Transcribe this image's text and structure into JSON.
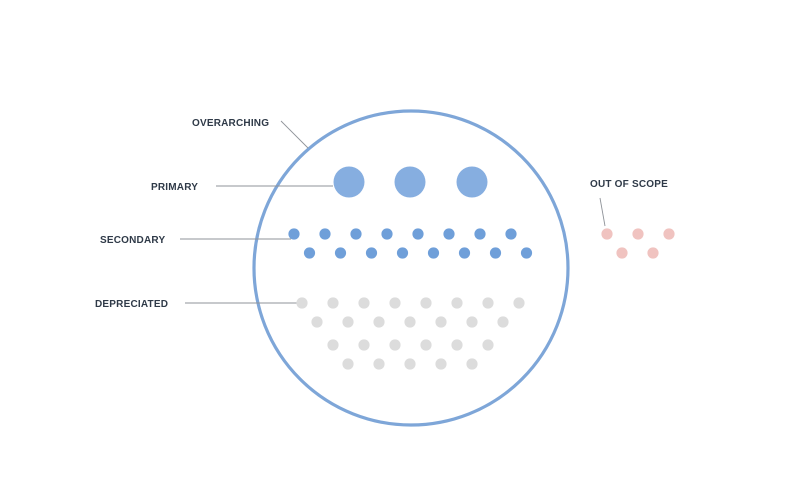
{
  "labels": {
    "overarching": "OVERARCHING",
    "primary": "PRIMARY",
    "secondary": "SECONDARY",
    "depreciated": "DEPRECIATED",
    "out_of_scope": "OUT OF SCOPE"
  },
  "colors": {
    "circle_stroke": "#7ea6d8",
    "primary_dot": "#86aee0",
    "secondary_dot": "#6f9fd9",
    "depreciated_dot": "#dcdcdc",
    "out_of_scope_dot": "#f0c3c0",
    "label_text": "#2f3a48",
    "leader_line": "#8f9399"
  }
}
